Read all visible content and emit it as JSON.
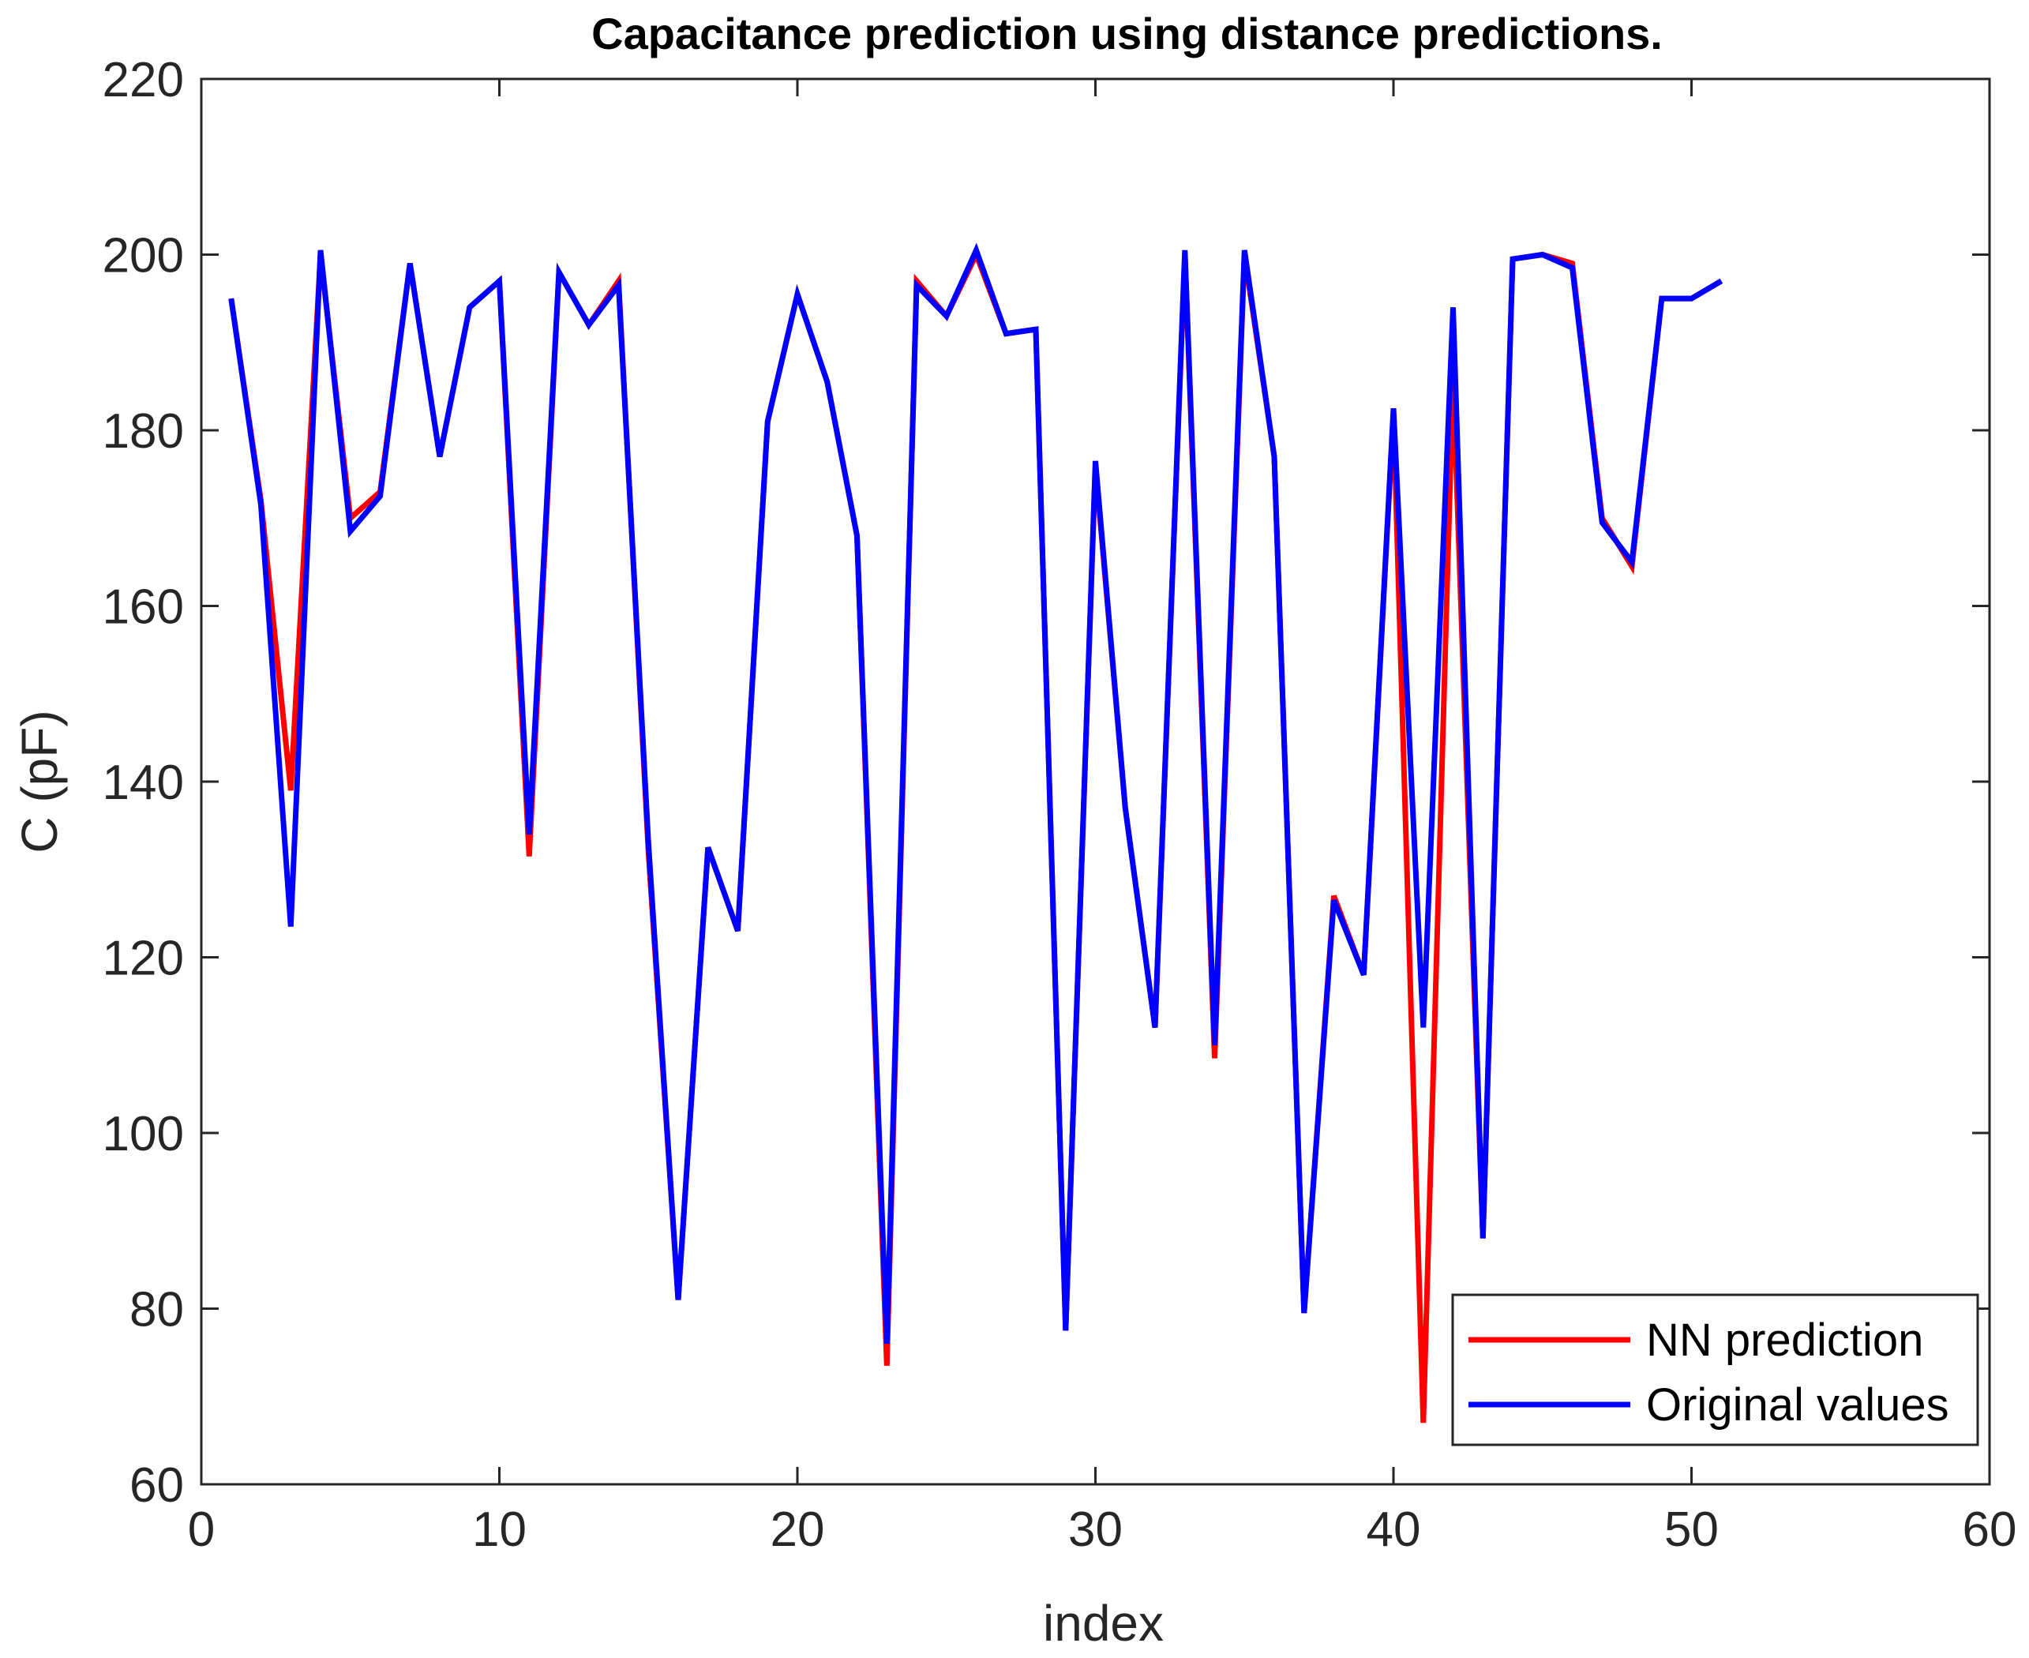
{
  "chart_data": {
    "type": "line",
    "title": "Capacitance prediction using distance predictions.",
    "xlabel": "index",
    "ylabel": "C (pF)",
    "xlim": [
      0,
      60
    ],
    "ylim": [
      60,
      220
    ],
    "xticks": [
      0,
      10,
      20,
      30,
      40,
      50,
      60
    ],
    "yticks": [
      60,
      80,
      100,
      120,
      140,
      160,
      180,
      200,
      220
    ],
    "xtick_labels": [
      "0",
      "10",
      "20",
      "30",
      "40",
      "50",
      "60"
    ],
    "ytick_labels": [
      "60",
      "80",
      "100",
      "120",
      "140",
      "160",
      "180",
      "200",
      "220"
    ],
    "grid": false,
    "legend_position": "bottom-right",
    "x": [
      1,
      2,
      3,
      4,
      5,
      6,
      7,
      8,
      9,
      10,
      11,
      12,
      13,
      14,
      15,
      16,
      17,
      18,
      19,
      20,
      21,
      22,
      23,
      24,
      25,
      26,
      27,
      28,
      29,
      30,
      31,
      32,
      33,
      34,
      35,
      36,
      37,
      38,
      39,
      40,
      41,
      42,
      43,
      44,
      45,
      46,
      47,
      48,
      49,
      50,
      51
    ],
    "series": [
      {
        "name": "NN prediction",
        "color": "#ff0000",
        "values": [
          195,
          172,
          139,
          200,
          170,
          173,
          199,
          177,
          194,
          197,
          131.5,
          198,
          192,
          197,
          132,
          81,
          132.5,
          123,
          181,
          195.5,
          185.5,
          168,
          73.5,
          197,
          193,
          200,
          191,
          191.5,
          77.5,
          176,
          137,
          112,
          200,
          108.5,
          200,
          177,
          79.5,
          127,
          118,
          182,
          67,
          186,
          88,
          199.5,
          200,
          199,
          170,
          164.5,
          195,
          195,
          197
        ]
      },
      {
        "name": "Original values",
        "color": "#0000ff",
        "values": [
          195,
          171.5,
          123.5,
          200.5,
          168.5,
          172.5,
          199,
          177,
          194,
          197,
          134,
          198,
          192,
          196.5,
          133,
          81,
          132.5,
          123,
          181,
          195.5,
          185.5,
          168,
          76,
          196.5,
          193,
          200.5,
          191,
          191.5,
          77.5,
          176.5,
          137,
          112,
          200.5,
          110,
          200.5,
          177,
          79.5,
          126.5,
          118,
          182.5,
          112,
          194,
          88,
          199.5,
          200,
          198.5,
          169.5,
          165,
          195,
          195,
          197
        ]
      }
    ]
  }
}
